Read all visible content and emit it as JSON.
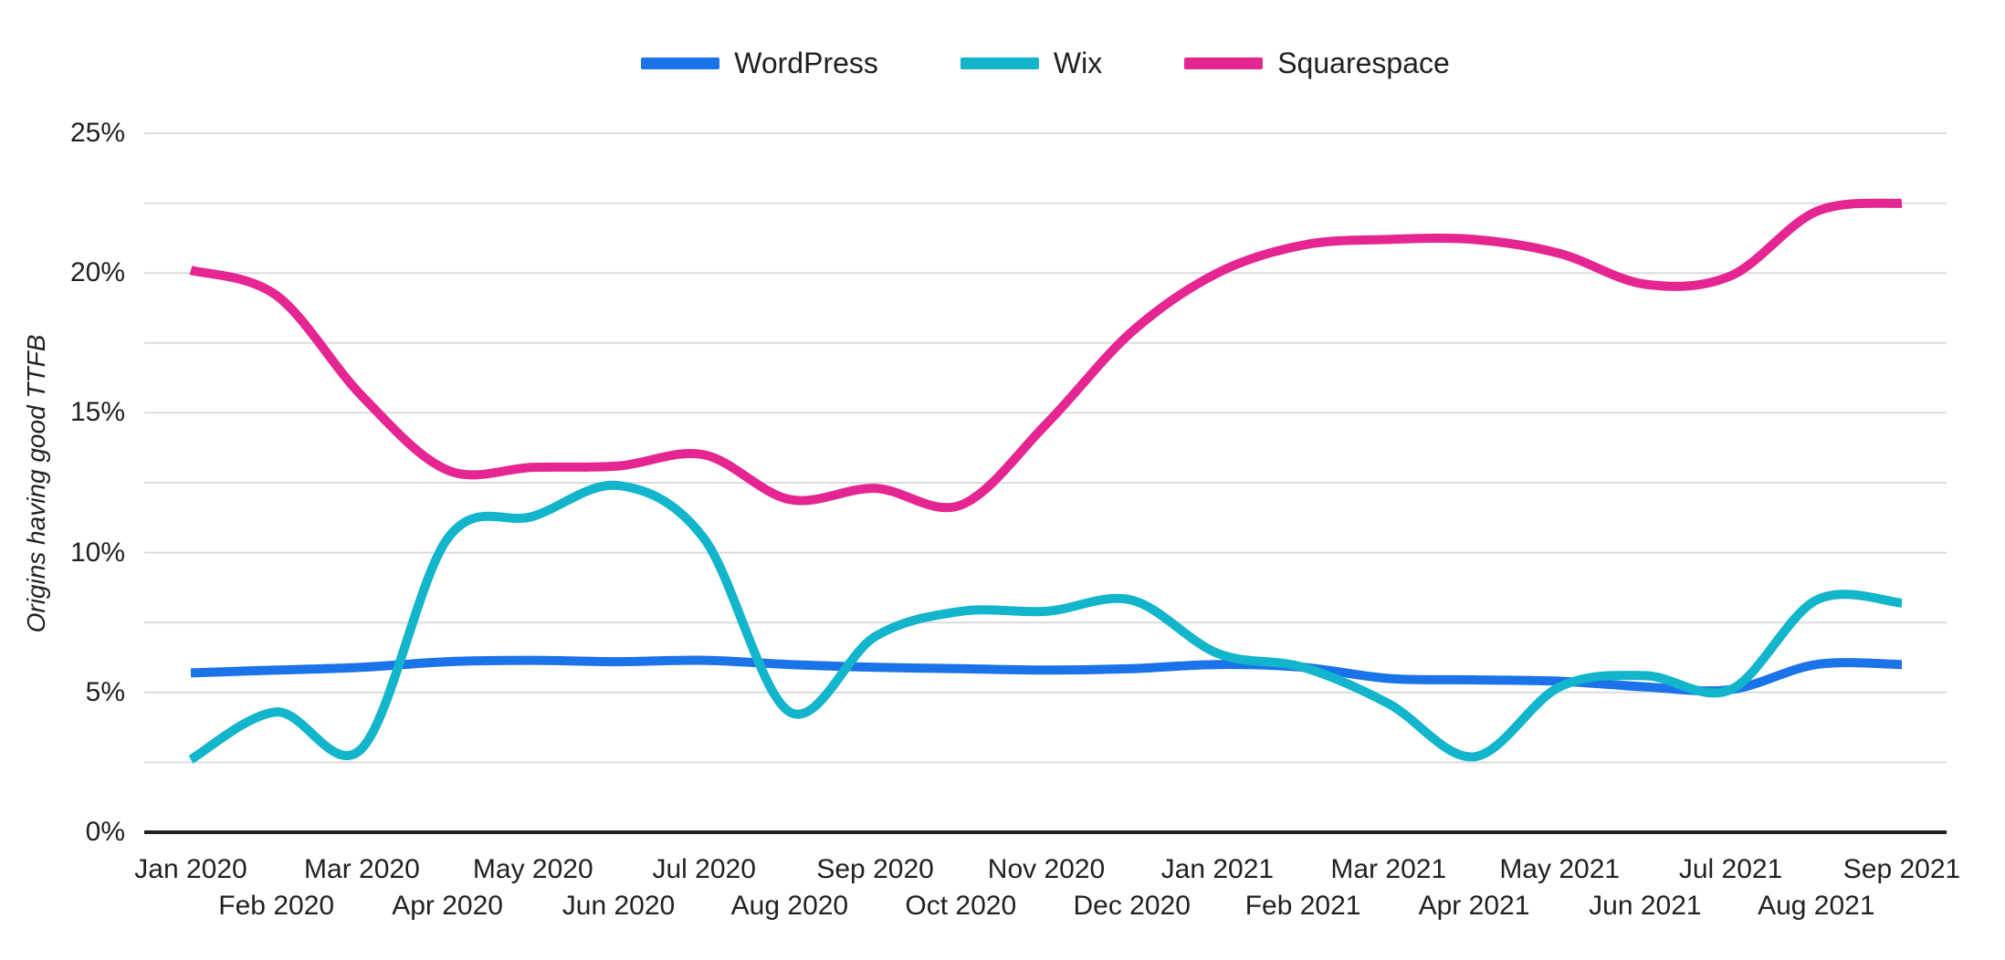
{
  "y_axis": {
    "title": "Origins having good TTFB",
    "tick_labels": [
      "0%",
      "5%",
      "10%",
      "15%",
      "20%",
      "25%"
    ],
    "tick_values": [
      0,
      5,
      10,
      15,
      20,
      25
    ]
  },
  "chart_data": {
    "type": "line",
    "title": "",
    "ylabel": "Origins having good TTFB",
    "ylim": [
      0,
      25
    ],
    "gridline_step_pct": 2.5,
    "grid": "horizontal only",
    "legend_position": "top-center",
    "smoothing": "spline",
    "x": [
      "Jan 2020",
      "Feb 2020",
      "Mar 2020",
      "Apr 2020",
      "May 2020",
      "Jun 2020",
      "Jul 2020",
      "Aug 2020",
      "Sep 2020",
      "Oct 2020",
      "Nov 2020",
      "Dec 2020",
      "Jan 2021",
      "Feb 2021",
      "Mar 2021",
      "Apr 2021",
      "May 2021",
      "Jun 2021",
      "Jul 2021",
      "Aug 2021",
      "Sep 2021"
    ],
    "series": [
      {
        "name": "WordPress",
        "color": "#1a73e8",
        "values": [
          5.7,
          5.8,
          5.9,
          6.1,
          6.15,
          6.1,
          6.15,
          6.0,
          5.9,
          5.85,
          5.8,
          5.85,
          6.0,
          5.9,
          5.5,
          5.45,
          5.4,
          5.2,
          5.1,
          6.0,
          6.0
        ]
      },
      {
        "name": "Wix",
        "color": "#12b5cb",
        "values": [
          2.6,
          4.3,
          3.0,
          10.5,
          11.3,
          12.4,
          10.5,
          4.3,
          7.0,
          7.9,
          7.9,
          8.3,
          6.4,
          5.9,
          4.6,
          2.7,
          5.2,
          5.6,
          5.1,
          8.3,
          8.2
        ]
      },
      {
        "name": "Squarespace",
        "color": "#e52592",
        "values": [
          20.1,
          19.2,
          15.6,
          12.95,
          13.05,
          13.1,
          13.5,
          11.9,
          12.3,
          11.7,
          14.6,
          17.9,
          20.0,
          21.0,
          21.2,
          21.2,
          20.7,
          19.6,
          19.9,
          22.2,
          22.5
        ]
      }
    ]
  },
  "colors": {
    "background": "#ffffff",
    "gridline": "#dadce0",
    "axis_line": "#202124",
    "text": "#202124",
    "wordpress": "#1a73e8",
    "wix": "#12b5cb",
    "squarespace": "#e52592"
  }
}
